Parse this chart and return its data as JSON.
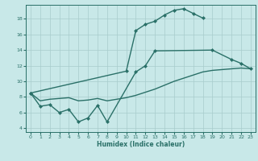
{
  "xlabel": "Humidex (Indice chaleur)",
  "background_color": "#c8e8e8",
  "grid_color": "#a8cccc",
  "line_color": "#2a7068",
  "xlim": [
    -0.5,
    23.5
  ],
  "ylim": [
    3.5,
    19.8
  ],
  "yticks": [
    4,
    6,
    8,
    10,
    12,
    14,
    16,
    18
  ],
  "xticks": [
    0,
    1,
    2,
    3,
    4,
    5,
    6,
    7,
    8,
    9,
    10,
    11,
    12,
    13,
    14,
    15,
    16,
    17,
    18,
    19,
    20,
    21,
    22,
    23
  ],
  "xa": [
    0,
    1,
    2,
    3,
    4,
    5,
    6,
    7,
    8,
    11,
    12,
    13,
    19,
    21,
    22,
    23
  ],
  "ya": [
    8.5,
    6.8,
    7.0,
    6.0,
    6.4,
    4.8,
    5.3,
    6.9,
    4.8,
    11.2,
    12.0,
    13.9,
    14.0,
    12.8,
    12.3,
    11.6
  ],
  "xb": [
    0,
    10,
    11,
    12,
    13,
    14,
    15,
    16,
    17,
    18
  ],
  "yb": [
    8.5,
    11.3,
    16.5,
    17.3,
    17.7,
    18.5,
    19.1,
    19.3,
    18.7,
    18.1
  ],
  "xc": [
    0,
    1,
    2,
    3,
    4,
    5,
    6,
    7,
    8,
    9,
    10,
    11,
    12,
    13,
    14,
    15,
    16,
    17,
    18,
    19,
    20,
    21,
    22,
    23
  ],
  "yc": [
    8.5,
    7.5,
    7.7,
    7.8,
    7.9,
    7.5,
    7.6,
    7.8,
    7.5,
    7.7,
    7.9,
    8.2,
    8.6,
    9.0,
    9.5,
    10.0,
    10.4,
    10.8,
    11.2,
    11.4,
    11.5,
    11.6,
    11.7,
    11.6
  ],
  "line_width": 1.0,
  "marker_size": 2.5
}
